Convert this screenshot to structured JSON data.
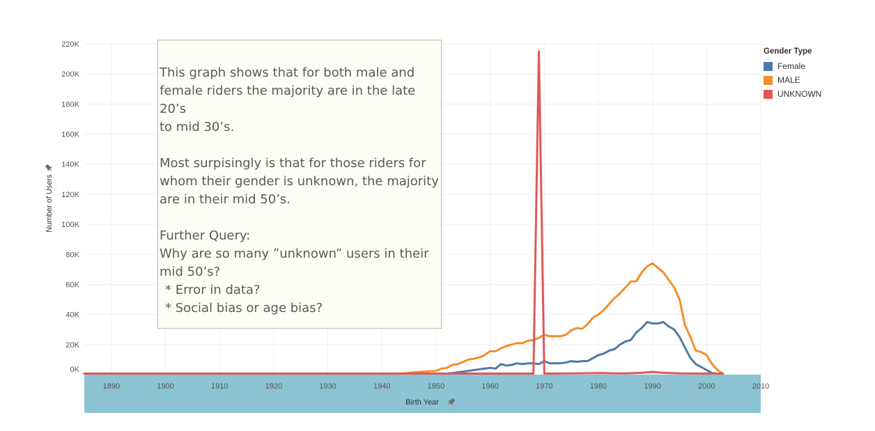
{
  "chart_data": {
    "type": "line",
    "xlabel": "Birth Year",
    "ylabel": "Number of Users",
    "xlim": [
      1885,
      2010
    ],
    "ylim": [
      0,
      220000
    ],
    "x_ticks": [
      1890,
      1900,
      1910,
      1920,
      1930,
      1940,
      1950,
      1960,
      1970,
      1980,
      1990,
      2000,
      2010
    ],
    "y_ticks": [
      {
        "value": 0,
        "label": "0K"
      },
      {
        "value": 20000,
        "label": "20K"
      },
      {
        "value": 40000,
        "label": "40K"
      },
      {
        "value": 60000,
        "label": "60K"
      },
      {
        "value": 80000,
        "label": "80K"
      },
      {
        "value": 100000,
        "label": "100K"
      },
      {
        "value": 120000,
        "label": "120K"
      },
      {
        "value": 140000,
        "label": "140K"
      },
      {
        "value": 160000,
        "label": "160K"
      },
      {
        "value": 180000,
        "label": "180K"
      },
      {
        "value": 200000,
        "label": "200K"
      },
      {
        "value": 220000,
        "label": "220K"
      }
    ],
    "grid": true,
    "legend_position": "top-right",
    "legend_title": "Gender Type",
    "series": [
      {
        "name": "Female",
        "color": "#4e79a7",
        "x": [
          1940,
          1945,
          1950,
          1952,
          1953,
          1954,
          1955,
          1956,
          1957,
          1958,
          1959,
          1960,
          1961,
          1962,
          1963,
          1964,
          1965,
          1966,
          1967,
          1968,
          1969,
          1970,
          1971,
          1972,
          1973,
          1974,
          1975,
          1976,
          1977,
          1978,
          1979,
          1980,
          1981,
          1982,
          1983,
          1984,
          1985,
          1986,
          1987,
          1988,
          1989,
          1990,
          1991,
          1992,
          1993,
          1994,
          1995,
          1996,
          1997,
          1998,
          1999,
          2000,
          2001,
          2002,
          2003
        ],
        "y": [
          0,
          100,
          400,
          600,
          1000,
          1500,
          2000,
          2500,
          3000,
          3500,
          4000,
          4500,
          4000,
          7000,
          6000,
          6500,
          7500,
          7000,
          7500,
          7500,
          7000,
          9000,
          7500,
          7500,
          7500,
          8000,
          9000,
          8500,
          9000,
          9000,
          11000,
          13000,
          14000,
          16000,
          17000,
          20000,
          22000,
          23000,
          28000,
          31000,
          35000,
          34000,
          34000,
          35000,
          32000,
          30000,
          25000,
          18000,
          11000,
          7000,
          5000,
          3000,
          1000,
          300,
          0
        ]
      },
      {
        "name": "MALE",
        "color": "#f28e2b",
        "x": [
          1885,
          1888,
          1890,
          1940,
          1942,
          1944,
          1946,
          1947,
          1948,
          1949,
          1950,
          1951,
          1952,
          1953,
          1954,
          1955,
          1956,
          1957,
          1958,
          1959,
          1960,
          1961,
          1962,
          1963,
          1964,
          1965,
          1966,
          1967,
          1968,
          1969,
          1970,
          1971,
          1972,
          1973,
          1974,
          1975,
          1976,
          1977,
          1978,
          1979,
          1980,
          1981,
          1982,
          1983,
          1984,
          1985,
          1986,
          1987,
          1988,
          1989,
          1990,
          1991,
          1992,
          1993,
          1994,
          1995,
          1996,
          1997,
          1998,
          1999,
          2000,
          2001,
          2002,
          2003
        ],
        "y": [
          500,
          500,
          0,
          0,
          300,
          800,
          1500,
          1800,
          2000,
          2300,
          2500,
          4000,
          4500,
          6500,
          7000,
          8500,
          10000,
          10500,
          11500,
          13000,
          15500,
          15500,
          17500,
          19000,
          20000,
          21000,
          21000,
          22500,
          23000,
          24500,
          26500,
          25500,
          25500,
          25500,
          26500,
          29500,
          31000,
          30500,
          33500,
          38000,
          40000,
          43000,
          47000,
          51000,
          54000,
          58000,
          62000,
          62000,
          68000,
          72000,
          74000,
          71000,
          68000,
          63000,
          58000,
          50000,
          33000,
          25000,
          16000,
          15000,
          13000,
          7000,
          3000,
          500
        ]
      },
      {
        "name": "UNKNOWN",
        "color": "#e15759",
        "x": [
          1885,
          1940,
          1960,
          1965,
          1967,
          1968,
          1969,
          1970,
          1971,
          1975,
          1980,
          1985,
          1988,
          1990,
          1992,
          1995,
          2000,
          2003
        ],
        "y": [
          0,
          0,
          200,
          300,
          400,
          500,
          215000,
          500,
          400,
          800,
          1000,
          800,
          1200,
          1800,
          1200,
          800,
          400,
          0
        ]
      }
    ]
  },
  "annotation": {
    "paragraph1": [
      "This graph shows that for both male and",
      "female riders the majority are in the late 20’s",
      "to mid 30’s."
    ],
    "paragraph2": [
      "Most surpisingly is that for those riders for",
      "whom their gender is unknown, the majority",
      "are in their mid 50’s."
    ],
    "paragraph3": [
      "Further Query:",
      "Why are so many ”unknown” users in their",
      "mid 50’s?"
    ],
    "bullets": [
      "* Error in data?",
      "* Social bias or age bias?"
    ]
  },
  "icons": {
    "y_axis_pin": "pin-icon",
    "x_axis_pin": "pin-icon"
  },
  "colors": {
    "x_axis_band": "#8bc3d3",
    "grid": "#efefef"
  }
}
